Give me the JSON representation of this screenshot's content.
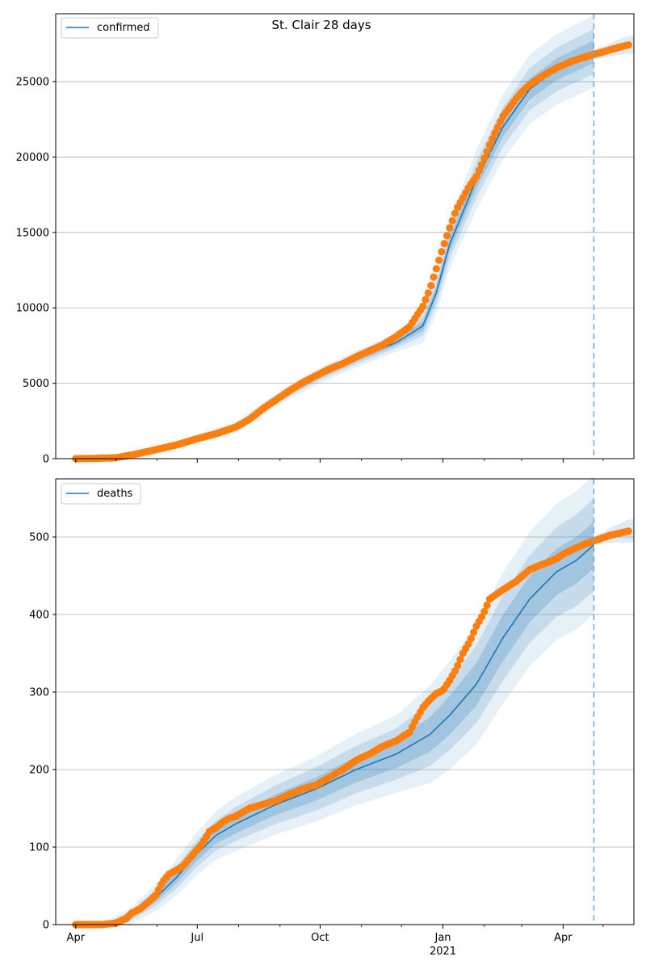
{
  "figure": {
    "title": "St. Clair 28 days"
  },
  "chart_data": [
    {
      "type": "line",
      "legend": {
        "label": "confirmed",
        "position": "top-left"
      },
      "x_ticks": [
        "Apr",
        "Jul",
        "Oct",
        "Jan",
        "Apr"
      ],
      "x_year_label": "2021",
      "ylim": [
        0,
        29500
      ],
      "y_ticks": [
        0,
        5000,
        10000,
        15000,
        20000,
        25000
      ],
      "grid": "y",
      "forecast_line_day": 388,
      "series": [
        {
          "role": "model",
          "points": [
            [
              0,
              0
            ],
            [
              30,
              50
            ],
            [
              60,
              500
            ],
            [
              90,
              1300
            ],
            [
              120,
              2100
            ],
            [
              150,
              3900
            ],
            [
              180,
              5400
            ],
            [
              210,
              6600
            ],
            [
              240,
              7700
            ],
            [
              260,
              8800
            ],
            [
              270,
              11000
            ],
            [
              280,
              14200
            ],
            [
              300,
              18500
            ],
            [
              320,
              22000
            ],
            [
              340,
              24500
            ],
            [
              360,
              25800
            ],
            [
              388,
              27000
            ]
          ]
        },
        {
          "role": "observed",
          "points": [
            [
              0,
              0
            ],
            [
              15,
              20
            ],
            [
              30,
              60
            ],
            [
              45,
              300
            ],
            [
              60,
              600
            ],
            [
              75,
              900
            ],
            [
              90,
              1300
            ],
            [
              105,
              1650
            ],
            [
              120,
              2100
            ],
            [
              130,
              2600
            ],
            [
              140,
              3300
            ],
            [
              150,
              3900
            ],
            [
              160,
              4500
            ],
            [
              170,
              5050
            ],
            [
              180,
              5500
            ],
            [
              190,
              5950
            ],
            [
              200,
              6300
            ],
            [
              210,
              6750
            ],
            [
              220,
              7150
            ],
            [
              230,
              7550
            ],
            [
              240,
              8100
            ],
            [
              250,
              8750
            ],
            [
              260,
              10100
            ],
            [
              265,
              11200
            ],
            [
              270,
              12600
            ],
            [
              275,
              14000
            ],
            [
              280,
              15300
            ],
            [
              285,
              16500
            ],
            [
              290,
              17300
            ],
            [
              295,
              18100
            ],
            [
              300,
              18700
            ],
            [
              305,
              19700
            ],
            [
              310,
              20800
            ],
            [
              315,
              21800
            ],
            [
              320,
              22700
            ],
            [
              325,
              23300
            ],
            [
              330,
              23900
            ],
            [
              335,
              24400
            ],
            [
              340,
              24800
            ],
            [
              350,
              25400
            ],
            [
              360,
              25900
            ],
            [
              370,
              26300
            ],
            [
              380,
              26600
            ],
            [
              388,
              26800
            ],
            [
              400,
              27100
            ],
            [
              410,
              27350
            ],
            [
              415,
              27450
            ]
          ]
        }
      ],
      "band_half_widths": [
        {
          "points": [
            [
              0,
              0
            ],
            [
              60,
              60
            ],
            [
              120,
              100
            ],
            [
              180,
              150
            ],
            [
              240,
              180
            ],
            [
              270,
              400
            ],
            [
              300,
              600
            ],
            [
              340,
              700
            ],
            [
              388,
              750
            ]
          ]
        },
        {
          "points": [
            [
              0,
              0
            ],
            [
              60,
              120
            ],
            [
              120,
              200
            ],
            [
              180,
              300
            ],
            [
              240,
              360
            ],
            [
              270,
              800
            ],
            [
              300,
              1200
            ],
            [
              340,
              1400
            ],
            [
              388,
              1500
            ]
          ]
        },
        {
          "points": [
            [
              0,
              0
            ],
            [
              60,
              200
            ],
            [
              120,
              350
            ],
            [
              180,
              500
            ],
            [
              240,
              600
            ],
            [
              270,
              1400
            ],
            [
              300,
              2000
            ],
            [
              340,
              2300
            ],
            [
              388,
              2400
            ]
          ]
        }
      ],
      "after_band_half_width": [
        [
          388,
          300
        ],
        [
          415,
          600
        ]
      ]
    },
    {
      "type": "line",
      "legend": {
        "label": "deaths",
        "position": "top-left"
      },
      "x_ticks": [
        "Apr",
        "Jul",
        "Oct",
        "Jan",
        "Apr"
      ],
      "x_year_label": "2021",
      "ylim": [
        0,
        575
      ],
      "y_ticks": [
        0,
        100,
        200,
        300,
        400,
        500
      ],
      "grid": "y",
      "forecast_line_day": 388,
      "series": [
        {
          "role": "model",
          "points": [
            [
              0,
              0
            ],
            [
              25,
              0
            ],
            [
              40,
              10
            ],
            [
              60,
              35
            ],
            [
              75,
              60
            ],
            [
              90,
              90
            ],
            [
              105,
              115
            ],
            [
              120,
              130
            ],
            [
              150,
              155
            ],
            [
              180,
              175
            ],
            [
              210,
              200
            ],
            [
              240,
              220
            ],
            [
              265,
              245
            ],
            [
              280,
              270
            ],
            [
              300,
              310
            ],
            [
              320,
              370
            ],
            [
              340,
              420
            ],
            [
              360,
              455
            ],
            [
              375,
              470
            ],
            [
              388,
              490
            ]
          ]
        },
        {
          "role": "observed",
          "points": [
            [
              0,
              0
            ],
            [
              20,
              0
            ],
            [
              30,
              2
            ],
            [
              38,
              8
            ],
            [
              42,
              15
            ],
            [
              48,
              20
            ],
            [
              55,
              30
            ],
            [
              60,
              38
            ],
            [
              65,
              55
            ],
            [
              70,
              65
            ],
            [
              75,
              70
            ],
            [
              80,
              75
            ],
            [
              85,
              85
            ],
            [
              90,
              95
            ],
            [
              95,
              105
            ],
            [
              100,
              120
            ],
            [
              105,
              125
            ],
            [
              110,
              132
            ],
            [
              115,
              137
            ],
            [
              120,
              140
            ],
            [
              130,
              150
            ],
            [
              140,
              155
            ],
            [
              150,
              160
            ],
            [
              160,
              168
            ],
            [
              170,
              175
            ],
            [
              180,
              180
            ],
            [
              190,
              190
            ],
            [
              200,
              200
            ],
            [
              210,
              212
            ],
            [
              220,
              220
            ],
            [
              230,
              230
            ],
            [
              240,
              237
            ],
            [
              245,
              243
            ],
            [
              250,
              248
            ],
            [
              255,
              265
            ],
            [
              260,
              280
            ],
            [
              265,
              290
            ],
            [
              270,
              298
            ],
            [
              275,
              302
            ],
            [
              280,
              315
            ],
            [
              285,
              330
            ],
            [
              290,
              350
            ],
            [
              295,
              365
            ],
            [
              300,
              385
            ],
            [
              305,
              400
            ],
            [
              310,
              420
            ],
            [
              320,
              432
            ],
            [
              330,
              443
            ],
            [
              340,
              458
            ],
            [
              350,
              465
            ],
            [
              360,
              472
            ],
            [
              365,
              478
            ],
            [
              370,
              482
            ],
            [
              375,
              486
            ],
            [
              380,
              490
            ],
            [
              388,
              495
            ],
            [
              400,
              502
            ],
            [
              410,
              506
            ],
            [
              415,
              508
            ]
          ]
        }
      ],
      "band_half_widths": [
        {
          "points": [
            [
              0,
              0
            ],
            [
              40,
              3
            ],
            [
              80,
              8
            ],
            [
              120,
              12
            ],
            [
              180,
              15
            ],
            [
              240,
              18
            ],
            [
              280,
              25
            ],
            [
              320,
              30
            ],
            [
              388,
              30
            ]
          ]
        },
        {
          "points": [
            [
              0,
              0
            ],
            [
              40,
              6
            ],
            [
              80,
              15
            ],
            [
              120,
              22
            ],
            [
              180,
              28
            ],
            [
              240,
              33
            ],
            [
              280,
              45
            ],
            [
              320,
              55
            ],
            [
              388,
              60
            ]
          ]
        },
        {
          "points": [
            [
              0,
              0
            ],
            [
              40,
              10
            ],
            [
              80,
              25
            ],
            [
              120,
              35
            ],
            [
              180,
              42
            ],
            [
              240,
              50
            ],
            [
              280,
              70
            ],
            [
              320,
              85
            ],
            [
              388,
              90
            ]
          ]
        }
      ],
      "after_band_half_width": [
        [
          388,
          5
        ],
        [
          415,
          15
        ]
      ]
    }
  ],
  "colors": {
    "model_line": "#1f77b4",
    "observed": "#ff7f0e",
    "band": "#1f77b4",
    "grid": "#b0b0b0",
    "forecast_line": "#6fa8cc"
  }
}
